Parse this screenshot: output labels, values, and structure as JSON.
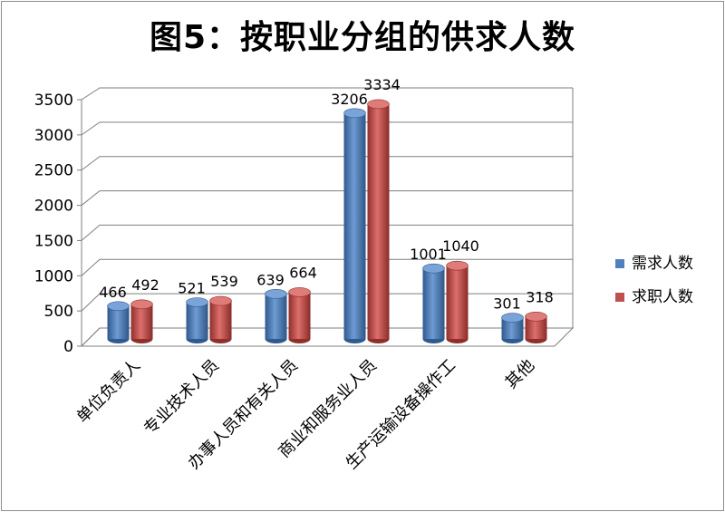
{
  "chart_data": {
    "type": "bar",
    "title": "图5：按职业分组的供求人数",
    "categories": [
      "单位负责人",
      "专业技术人员",
      "办事人员和有关人员",
      "商业和服务业人员",
      "生产运输设备操作工",
      "其他"
    ],
    "series": [
      {
        "name": "需求人数",
        "values": [
          466,
          521,
          639,
          3206,
          1001,
          301
        ],
        "color": "#4f81bd"
      },
      {
        "name": "求职人数",
        "values": [
          492,
          539,
          664,
          3334,
          1040,
          318
        ],
        "color": "#c0504d"
      }
    ],
    "ylim": [
      0,
      3500
    ],
    "yticks": [
      0,
      500,
      1000,
      1500,
      2000,
      2500,
      3000,
      3500
    ],
    "grid": true,
    "legend": "right"
  }
}
